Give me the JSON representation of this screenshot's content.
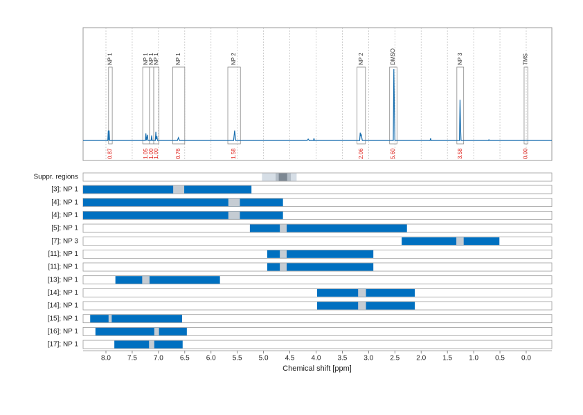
{
  "chart_data": [
    {
      "type": "line",
      "xlim": [
        8.435,
        -0.488
      ],
      "ylim": [
        -0.28,
        1.58
      ],
      "grid": true,
      "color": "#1a6faf",
      "x": [
        8.435,
        7.965,
        7.955,
        7.948,
        7.94,
        7.93,
        7.25,
        7.24,
        7.23,
        7.21,
        7.2,
        7.14,
        7.13,
        7.12,
        7.06,
        7.05,
        7.04,
        7.03,
        7.02,
        6.64,
        6.62,
        6.6,
        5.57,
        5.55,
        5.53,
        4.17,
        4.15,
        4.13,
        4.05,
        4.04,
        4.03,
        3.17,
        3.16,
        3.15,
        3.14,
        3.12,
        2.53,
        2.52,
        2.51,
        2.5,
        1.83,
        1.82,
        1.81,
        1.27,
        1.26,
        1.25,
        1.24,
        0.72,
        0.71,
        0.7,
        -0.488
      ],
      "values": [
        0,
        0,
        0.14,
        0.01,
        0.14,
        0,
        0,
        0.1,
        0,
        0.08,
        0,
        0,
        0.07,
        0,
        0,
        0.12,
        0.02,
        0.06,
        0,
        0,
        0.04,
        0,
        0,
        0.14,
        0,
        0,
        0.02,
        0,
        0,
        0.03,
        0,
        0,
        0.11,
        0.06,
        0.08,
        0,
        0,
        1.0,
        0.5,
        0,
        0,
        0.03,
        0,
        0,
        0.57,
        0.2,
        0,
        0,
        0.01,
        0,
        0
      ],
      "annotations": {
        "labels": [
          "NP 1",
          "NP 1",
          "NP 1",
          "NP 1",
          "NP 1",
          "NP 2",
          "NP 2",
          "DMSO",
          "NP 3",
          "TMS"
        ],
        "ranges": [
          [
            7.95,
            7.88
          ],
          [
            7.3,
            7.17
          ],
          [
            7.17,
            7.09
          ],
          [
            7.09,
            6.99
          ],
          [
            6.73,
            6.5
          ],
          [
            5.68,
            5.44
          ],
          [
            3.22,
            3.06
          ],
          [
            2.6,
            2.46
          ],
          [
            1.32,
            1.19
          ],
          [
            0.04,
            -0.03
          ]
        ],
        "values": [
          0.87,
          1.05,
          1.0,
          1.0,
          0.76,
          1.58,
          2.06,
          5.6,
          3.58,
          0.0
        ],
        "value_labels": [
          "0.87",
          "1.05",
          "1.00",
          "1.00",
          "0.76",
          "1.58",
          "2.06",
          "5.60",
          "3.58",
          "0.00"
        ]
      }
    },
    {
      "type": "range",
      "x_label": "Chemical shift [ppm]",
      "xlim": [
        8.435,
        -0.488
      ],
      "xticks": [
        {
          "value": 8,
          "label": "8.0"
        },
        {
          "value": 7.5,
          "label": "7.5"
        },
        {
          "value": 7,
          "label": "7.0"
        },
        {
          "value": 6.5,
          "label": "6.5"
        },
        {
          "value": 6,
          "label": "6.0"
        },
        {
          "value": 5.5,
          "label": "5.5"
        },
        {
          "value": 5,
          "label": "5.0"
        },
        {
          "value": 4.5,
          "label": "4.5"
        },
        {
          "value": 4,
          "label": "4.0"
        },
        {
          "value": 3.5,
          "label": "3.5"
        },
        {
          "value": 3,
          "label": "3.0"
        },
        {
          "value": 2.5,
          "label": "2.5"
        },
        {
          "value": 2,
          "label": "2.0"
        },
        {
          "value": 1.5,
          "label": "1.5"
        },
        {
          "value": 1,
          "label": "1.0"
        },
        {
          "value": 0.5,
          "label": "0.5"
        },
        {
          "value": 0,
          "label": "0.0"
        }
      ],
      "bar_color": "#0070c0",
      "gap_color": "#c5ccd3",
      "suppressed": {
        "label": "Suppr. regions",
        "ranges": [
          [
            5.03,
            4.37
          ],
          [
            4.77,
            4.48
          ],
          [
            4.71,
            4.55
          ]
        ],
        "colors": [
          "#d6dee6",
          "#b3bdc7",
          "#7d8893"
        ]
      },
      "categories": [
        "[3]; NP 1",
        "[4]; NP 1",
        "[4]; NP 1",
        "[5]; NP 1",
        "[7]; NP 3",
        "[11]; NP 1",
        "[11]; NP 1",
        "[13]; NP 1",
        "[14]; NP 1",
        "[14]; NP 1",
        "[15]; NP 1",
        "[16]; NP 1",
        "[17]; NP 1"
      ],
      "ranges": [
        [
          8.435,
          5.23
        ],
        [
          8.435,
          4.63
        ],
        [
          8.435,
          4.63
        ],
        [
          5.26,
          2.27
        ],
        [
          2.37,
          0.51
        ],
        [
          4.93,
          2.91
        ],
        [
          4.93,
          2.91
        ],
        [
          7.82,
          5.83
        ],
        [
          3.98,
          2.12
        ],
        [
          3.98,
          2.12
        ],
        [
          8.3,
          6.55
        ],
        [
          8.2,
          6.46
        ],
        [
          7.84,
          6.54
        ]
      ],
      "gaps": [
        [
          6.72,
          6.51
        ],
        [
          5.67,
          5.45
        ],
        [
          5.67,
          5.45
        ],
        [
          4.69,
          4.56
        ],
        [
          1.33,
          1.19
        ],
        [
          4.69,
          4.56
        ],
        [
          4.69,
          4.56
        ],
        [
          7.31,
          7.17
        ],
        [
          3.2,
          3.05
        ],
        [
          3.2,
          3.05
        ],
        [
          7.95,
          7.89
        ],
        [
          7.08,
          6.99
        ],
        [
          7.18,
          7.08
        ]
      ]
    }
  ]
}
